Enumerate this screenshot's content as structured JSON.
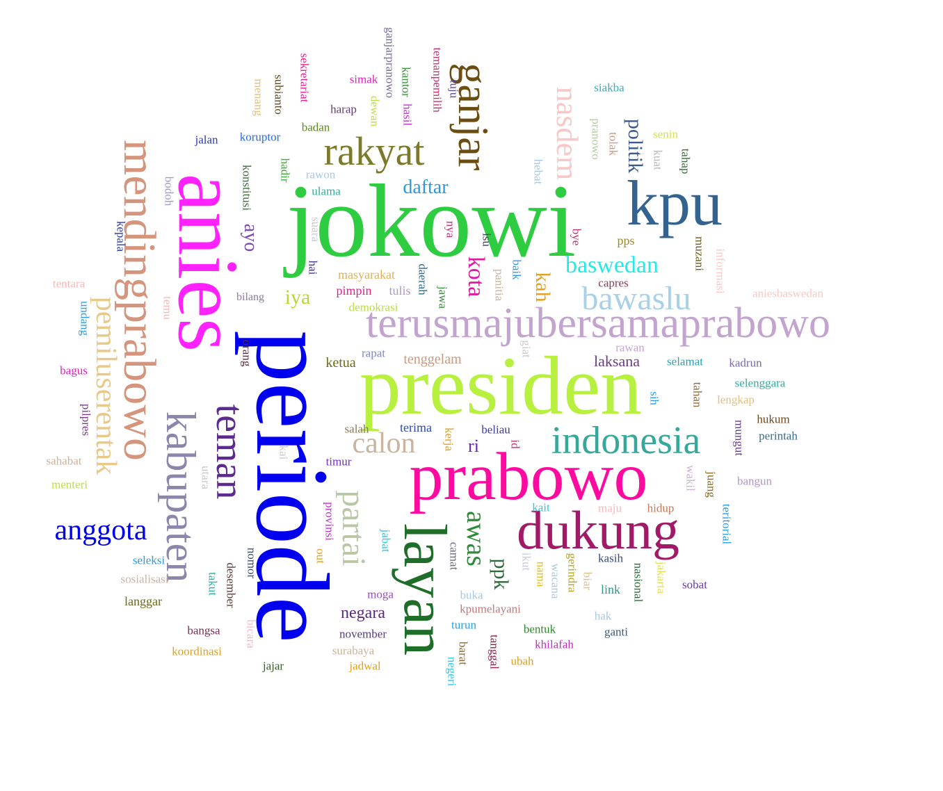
{
  "words": [
    {
      "text": "jokowi",
      "color": "#2ecc40",
      "orientation": "horizontal"
    },
    {
      "text": "periode",
      "color": "#0000ee",
      "orientation": "vertical"
    },
    {
      "text": "presiden",
      "color": "#b8f040",
      "orientation": "horizontal"
    },
    {
      "text": "anies",
      "color": "#ff22ff",
      "orientation": "vertical"
    },
    {
      "text": "prabowo",
      "color": "#ff0aa0",
      "orientation": "horizontal"
    },
    {
      "text": "kpu",
      "color": "#34638f",
      "orientation": "horizontal"
    },
    {
      "text": "terusmajubersamaprabowo",
      "color": "#c3a4cf",
      "orientation": "horizontal"
    },
    {
      "text": "layan",
      "color": "#1e6e2a",
      "orientation": "vertical"
    },
    {
      "text": "dukung",
      "color": "#a11a68",
      "orientation": "horizontal"
    },
    {
      "text": "mendingprabowo",
      "color": "#d4957c",
      "orientation": "vertical"
    },
    {
      "text": "kabupaten",
      "color": "#8c86ad",
      "orientation": "vertical"
    },
    {
      "text": "indonesia",
      "color": "#35a89a",
      "orientation": "horizontal"
    },
    {
      "text": "ganjar",
      "color": "#6b4d12",
      "orientation": "vertical"
    },
    {
      "text": "rakyat",
      "color": "#7b7a2a",
      "orientation": "horizontal"
    },
    {
      "text": "teman",
      "color": "#5c2a8f",
      "orientation": "vertical"
    },
    {
      "text": "pemiluserentak",
      "color": "#e8c98a",
      "orientation": "vertical"
    },
    {
      "text": "nasdem",
      "color": "#f8c8c8",
      "orientation": "vertical"
    },
    {
      "text": "bawaslu",
      "color": "#a8d0e6",
      "orientation": "horizontal"
    },
    {
      "text": "partai",
      "color": "#b9c7a6",
      "orientation": "vertical"
    },
    {
      "text": "anggota",
      "color": "#0000ee",
      "orientation": "horizontal"
    },
    {
      "text": "calon",
      "color": "#c8b49f",
      "orientation": "horizontal"
    },
    {
      "text": "awas",
      "color": "#2f8a3a",
      "orientation": "vertical"
    },
    {
      "text": "baswedan",
      "color": "#27e8e8",
      "orientation": "horizontal"
    },
    {
      "text": "politik",
      "color": "#3a5a8c",
      "orientation": "vertical"
    },
    {
      "text": "daftar",
      "color": "#2a9ae0",
      "orientation": "horizontal"
    },
    {
      "text": "kota",
      "color": "#e01aa0",
      "orientation": "vertical"
    },
    {
      "text": "ayo",
      "color": "#7a4aa8",
      "orientation": "vertical"
    },
    {
      "text": "iya",
      "color": "#b8d838",
      "orientation": "horizontal"
    },
    {
      "text": "kah",
      "color": "#e8a020",
      "orientation": "vertical"
    },
    {
      "text": "ppk",
      "color": "#2e6a3a",
      "orientation": "vertical"
    },
    {
      "text": "negara",
      "color": "#5a2a7a",
      "orientation": "horizontal"
    },
    {
      "text": "laksana",
      "color": "#6a3a8a",
      "orientation": "horizontal"
    },
    {
      "text": "ri",
      "color": "#6a2ab0",
      "orientation": "horizontal"
    },
    {
      "text": "ketua",
      "color": "#6b6b1a",
      "orientation": "horizontal"
    },
    {
      "text": "tenggelam",
      "color": "#c89a80",
      "orientation": "horizontal"
    },
    {
      "text": "pps",
      "color": "#a08a2a",
      "orientation": "horizontal"
    },
    {
      "text": "masyarakat",
      "color": "#e0b060",
      "orientation": "horizontal"
    },
    {
      "text": "pimpin",
      "color": "#e0208a",
      "orientation": "horizontal"
    },
    {
      "text": "demokrasi",
      "color": "#b8e040",
      "orientation": "horizontal"
    },
    {
      "text": "tulis",
      "color": "#b098c0",
      "orientation": "horizontal"
    },
    {
      "text": "capres",
      "color": "#8a3a5a",
      "orientation": "horizontal"
    },
    {
      "text": "bilang",
      "color": "#8a7aa0",
      "orientation": "horizontal"
    },
    {
      "text": "rapat",
      "color": "#7a8ad0",
      "orientation": "horizontal"
    },
    {
      "text": "salah",
      "color": "#8a7a5a",
      "orientation": "horizontal"
    },
    {
      "text": "terima",
      "color": "#2a4ab0",
      "orientation": "horizontal"
    },
    {
      "text": "beliau",
      "color": "#3a3aa0",
      "orientation": "horizontal"
    },
    {
      "text": "timur",
      "color": "#7a2ad0",
      "orientation": "horizontal"
    },
    {
      "text": "moga",
      "color": "#a04ac0",
      "orientation": "horizontal"
    },
    {
      "text": "buka",
      "color": "#a8c8e0",
      "orientation": "horizontal"
    },
    {
      "text": "kpumelayani",
      "color": "#c87878",
      "orientation": "horizontal"
    },
    {
      "text": "turun",
      "color": "#2aa0e0",
      "orientation": "horizontal"
    },
    {
      "text": "november",
      "color": "#5a3a7a",
      "orientation": "horizontal"
    },
    {
      "text": "surabaya",
      "color": "#c8b498",
      "orientation": "horizontal"
    },
    {
      "text": "jadwal",
      "color": "#e0a020",
      "orientation": "horizontal"
    },
    {
      "text": "jajar",
      "color": "#3a5a2a",
      "orientation": "horizontal"
    },
    {
      "text": "koordinasi",
      "color": "#e0a020",
      "orientation": "horizontal"
    },
    {
      "text": "bangsa",
      "color": "#7a2a5a",
      "orientation": "horizontal"
    },
    {
      "text": "langgar",
      "color": "#6a6a1a",
      "orientation": "horizontal"
    },
    {
      "text": "sosialisasi",
      "color": "#c8b4a0",
      "orientation": "horizontal"
    },
    {
      "text": "seleksi",
      "color": "#2a9ae0",
      "orientation": "horizontal"
    },
    {
      "text": "menteri",
      "color": "#b8e040",
      "orientation": "horizontal"
    },
    {
      "text": "sahabat",
      "color": "#c8b4a0",
      "orientation": "horizontal"
    },
    {
      "text": "bagus",
      "color": "#e020c0",
      "orientation": "horizontal"
    },
    {
      "text": "tentara",
      "color": "#f8b8b8",
      "orientation": "horizontal"
    },
    {
      "text": "bentuk",
      "color": "#2a8a2a",
      "orientation": "horizontal"
    },
    {
      "text": "khilafah",
      "color": "#c030c0",
      "orientation": "horizontal"
    },
    {
      "text": "ubah",
      "color": "#e0a020",
      "orientation": "horizontal"
    },
    {
      "text": "ganti",
      "color": "#3a5a7a",
      "orientation": "horizontal"
    },
    {
      "text": "hak",
      "color": "#a8c8e0",
      "orientation": "horizontal"
    },
    {
      "text": "link",
      "color": "#2a9a8a",
      "orientation": "horizontal"
    },
    {
      "text": "kasih",
      "color": "#3a4a7a",
      "orientation": "horizontal"
    },
    {
      "text": "sobat",
      "color": "#6a3aa0",
      "orientation": "horizontal"
    },
    {
      "text": "hidup",
      "color": "#c87858",
      "orientation": "horizontal"
    },
    {
      "text": "maju",
      "color": "#f8b8b8",
      "orientation": "horizontal"
    },
    {
      "text": "kait",
      "color": "#27c8e8",
      "orientation": "horizontal"
    },
    {
      "text": "bangun",
      "color": "#b098c0",
      "orientation": "horizontal"
    },
    {
      "text": "perintah",
      "color": "#3a6a8a",
      "orientation": "horizontal"
    },
    {
      "text": "hukum",
      "color": "#6a4a1a",
      "orientation": "horizontal"
    },
    {
      "text": "lengkap",
      "color": "#e0c080",
      "orientation": "horizontal"
    },
    {
      "text": "selenggara",
      "color": "#2ab0a0",
      "orientation": "horizontal"
    },
    {
      "text": "kadrun",
      "color": "#7a6aa0",
      "orientation": "horizontal"
    },
    {
      "text": "selamat",
      "color": "#2aa0b0",
      "orientation": "horizontal"
    },
    {
      "text": "rawan",
      "color": "#c8a4cf",
      "orientation": "horizontal"
    },
    {
      "text": "aniesbaswedan",
      "color": "#f8c8c8",
      "orientation": "horizontal"
    },
    {
      "text": "siakba",
      "color": "#2ab0c8",
      "orientation": "horizontal"
    },
    {
      "text": "senin",
      "color": "#d8e050",
      "orientation": "horizontal"
    },
    {
      "text": "harap",
      "color": "#6a3a7a",
      "orientation": "horizontal"
    },
    {
      "text": "simak",
      "color": "#e020c0",
      "orientation": "horizontal"
    },
    {
      "text": "badan",
      "color": "#5a8a1a",
      "orientation": "horizontal"
    },
    {
      "text": "koruptor",
      "color": "#2a6ae0",
      "orientation": "horizontal"
    },
    {
      "text": "jalan",
      "color": "#2a3ab0",
      "orientation": "horizontal"
    },
    {
      "text": "rawon",
      "color": "#a8c8e0",
      "orientation": "horizontal"
    },
    {
      "text": "ulama",
      "color": "#2ab0a0",
      "orientation": "horizontal"
    },
    {
      "text": "kepala",
      "color": "#2a3ab0",
      "orientation": "vertical"
    },
    {
      "text": "undang",
      "color": "#2a9ae0",
      "orientation": "vertical"
    },
    {
      "text": "bodoh",
      "color": "#a098c8",
      "orientation": "vertical"
    },
    {
      "text": "temu",
      "color": "#f8b8b8",
      "orientation": "vertical"
    },
    {
      "text": "pilpres",
      "color": "#7a3a8a",
      "orientation": "vertical"
    },
    {
      "text": "orang",
      "color": "#5a2a3a",
      "orientation": "vertical"
    },
    {
      "text": "konstitusi",
      "color": "#3a6a3a",
      "orientation": "vertical"
    },
    {
      "text": "hadir",
      "color": "#3aa83a",
      "orientation": "vertical"
    },
    {
      "text": "suara",
      "color": "#c8c8c8",
      "orientation": "vertical"
    },
    {
      "text": "hai",
      "color": "#3a3a8a",
      "orientation": "vertical"
    },
    {
      "text": "kai",
      "color": "#c8c8c8",
      "orientation": "vertical"
    },
    {
      "text": "utara",
      "color": "#c8c8c8",
      "orientation": "vertical"
    },
    {
      "text": "nomor",
      "color": "#3a4a6a",
      "orientation": "vertical"
    },
    {
      "text": "desember",
      "color": "#5a3a3a",
      "orientation": "vertical"
    },
    {
      "text": "takut",
      "color": "#2ab0a0",
      "orientation": "vertical"
    },
    {
      "text": "bicara",
      "color": "#f8b8c8",
      "orientation": "vertical"
    },
    {
      "text": "provinsi",
      "color": "#c030d0",
      "orientation": "vertical"
    },
    {
      "text": "out",
      "color": "#e0a020",
      "orientation": "vertical"
    },
    {
      "text": "jabat",
      "color": "#27c8e8",
      "orientation": "vertical"
    },
    {
      "text": "camat",
      "color": "#6a6a7a",
      "orientation": "vertical"
    },
    {
      "text": "kerja",
      "color": "#e0a020",
      "orientation": "vertical"
    },
    {
      "text": "id",
      "color": "#c03070",
      "orientation": "vertical"
    },
    {
      "text": "barat",
      "color": "#8a6a3a",
      "orientation": "vertical"
    },
    {
      "text": "negeri",
      "color": "#27c8e8",
      "orientation": "vertical"
    },
    {
      "text": "tanggal",
      "color": "#8a1a4a",
      "orientation": "vertical"
    },
    {
      "text": "ikut",
      "color": "#c8c8e0",
      "orientation": "vertical"
    },
    {
      "text": "nama",
      "color": "#e0c020",
      "orientation": "vertical"
    },
    {
      "text": "wacana",
      "color": "#a8c8e0",
      "orientation": "vertical"
    },
    {
      "text": "gerindra",
      "color": "#b8a020",
      "orientation": "vertical"
    },
    {
      "text": "biar",
      "color": "#e0c080",
      "orientation": "vertical"
    },
    {
      "text": "nasional",
      "color": "#2a6a3a",
      "orientation": "vertical"
    },
    {
      "text": "jakarta",
      "color": "#e0e050",
      "orientation": "vertical"
    },
    {
      "text": "teritorial",
      "color": "#2a9ae0",
      "orientation": "vertical"
    },
    {
      "text": "juang",
      "color": "#8a6a1a",
      "orientation": "vertical"
    },
    {
      "text": "wakil",
      "color": "#c8b4cf",
      "orientation": "vertical"
    },
    {
      "text": "mungut",
      "color": "#6a3a8a",
      "orientation": "vertical"
    },
    {
      "text": "tahan",
      "color": "#8a6a3a",
      "orientation": "vertical"
    },
    {
      "text": "sih",
      "color": "#2a9ae0",
      "orientation": "vertical"
    },
    {
      "text": "giat",
      "color": "#c8c8c8",
      "orientation": "vertical"
    },
    {
      "text": "panitia",
      "color": "#c8b4a0",
      "orientation": "vertical"
    },
    {
      "text": "baik",
      "color": "#2a9ae0",
      "orientation": "vertical"
    },
    {
      "text": "jawa",
      "color": "#3a8a3a",
      "orientation": "vertical"
    },
    {
      "text": "daerah",
      "color": "#2a6a8a",
      "orientation": "vertical"
    },
    {
      "text": "nya",
      "color": "#c03070",
      "orientation": "vertical"
    },
    {
      "text": "isu",
      "color": "#3a3a5a",
      "orientation": "vertical"
    },
    {
      "text": "bye",
      "color": "#c03070",
      "orientation": "vertical"
    },
    {
      "text": "muzani",
      "color": "#6a5a1a",
      "orientation": "vertical"
    },
    {
      "text": "informasi",
      "color": "#f8c8c8",
      "orientation": "vertical"
    },
    {
      "text": "hebat",
      "color": "#a8c8e0",
      "orientation": "vertical"
    },
    {
      "text": "pranowo",
      "color": "#b8c8a0",
      "orientation": "vertical"
    },
    {
      "text": "tolak",
      "color": "#c89a80",
      "orientation": "vertical"
    },
    {
      "text": "kuat",
      "color": "#b8b8b8",
      "orientation": "vertical"
    },
    {
      "text": "tahap",
      "color": "#3a6a3a",
      "orientation": "vertical"
    },
    {
      "text": "temanpemilih",
      "color": "#c03070",
      "orientation": "vertical"
    },
    {
      "text": "tuju",
      "color": "#5a4a8a",
      "orientation": "vertical"
    },
    {
      "text": "ganjarpranowo",
      "color": "#7a6aa0",
      "orientation": "vertical"
    },
    {
      "text": "kantor",
      "color": "#3a8a3a",
      "orientation": "vertical"
    },
    {
      "text": "hasil",
      "color": "#c030d0",
      "orientation": "vertical"
    },
    {
      "text": "dewan",
      "color": "#b8e040",
      "orientation": "vertical"
    },
    {
      "text": "sekretariat",
      "color": "#e02090",
      "orientation": "vertical"
    },
    {
      "text": "subianto",
      "color": "#5a4a1a",
      "orientation": "vertical"
    },
    {
      "text": "menang",
      "color": "#e0c080",
      "orientation": "vertical"
    }
  ]
}
